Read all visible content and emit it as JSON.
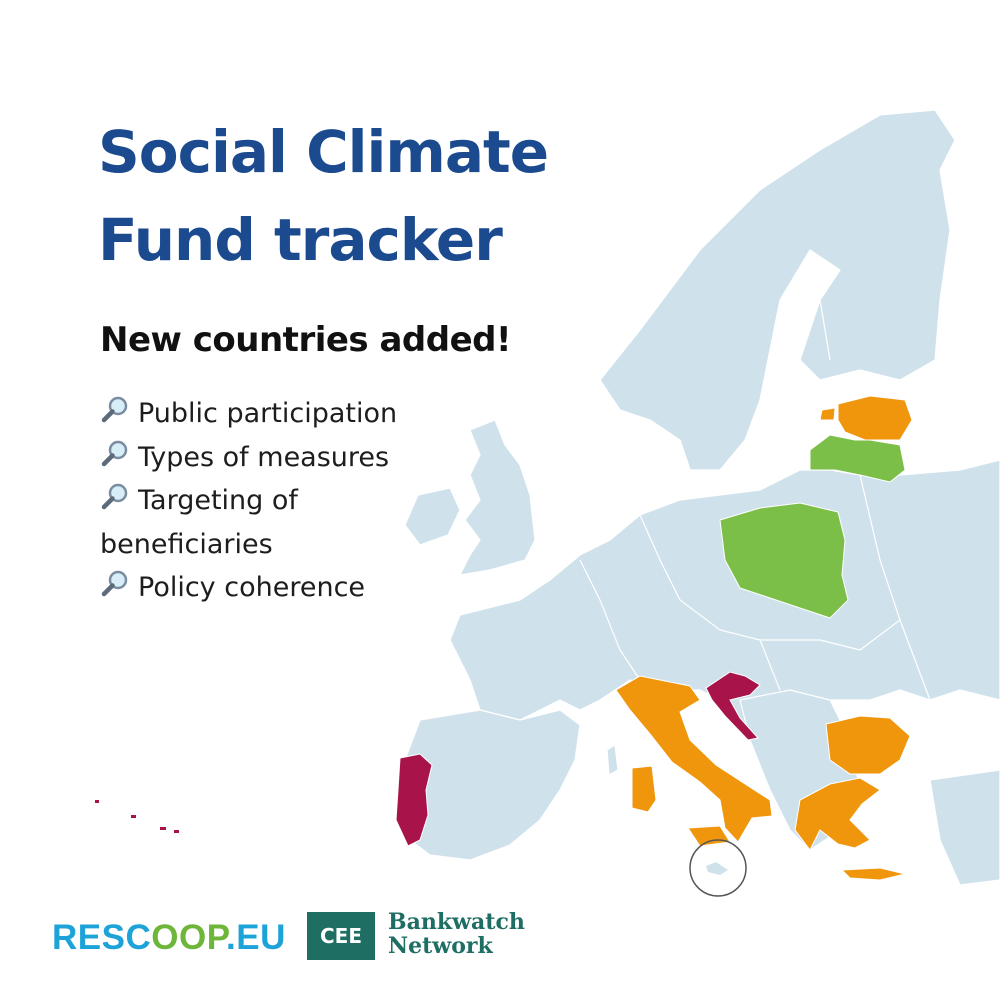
{
  "header": {
    "title_line1": "Social Climate",
    "title_line2": "Fund tracker"
  },
  "announcement": "New countries added!",
  "features": [
    {
      "icon": "magnifier-icon",
      "text": "Public participation"
    },
    {
      "icon": "magnifier-icon",
      "text": "Types of measures"
    },
    {
      "icon": "magnifier-icon",
      "text": "Targeting of beneficiaries"
    },
    {
      "icon": "magnifier-icon",
      "text": "Policy coherence"
    }
  ],
  "map": {
    "base_color": "#cfe2ec",
    "border_color": "#ffffff",
    "highlighted_countries": [
      {
        "country": "Estonia",
        "color": "#f0960c"
      },
      {
        "country": "Latvia",
        "color": "#7cbf48"
      },
      {
        "country": "Poland",
        "color": "#7cbf48"
      },
      {
        "country": "Croatia",
        "color": "#a8144a"
      },
      {
        "country": "Italy",
        "color": "#f0960c"
      },
      {
        "country": "Bulgaria",
        "color": "#f0960c"
      },
      {
        "country": "Greece",
        "color": "#f0960c"
      },
      {
        "country": "Portugal",
        "color": "#a8144a"
      }
    ],
    "inset_circle": "Malta"
  },
  "logos": {
    "rescoop_part1": "RESC",
    "rescoop_part2": "OOP",
    "rescoop_part3": ".EU",
    "cee": "CEE",
    "bankwatch_line1": "Bankwatch",
    "bankwatch_line2": "Network"
  },
  "colors": {
    "title": "#1b4a8f",
    "text": "#111111",
    "rescoop_blue": "#1ea3d8",
    "rescoop_green": "#6db63a",
    "bankwatch_green": "#1e6e64"
  }
}
